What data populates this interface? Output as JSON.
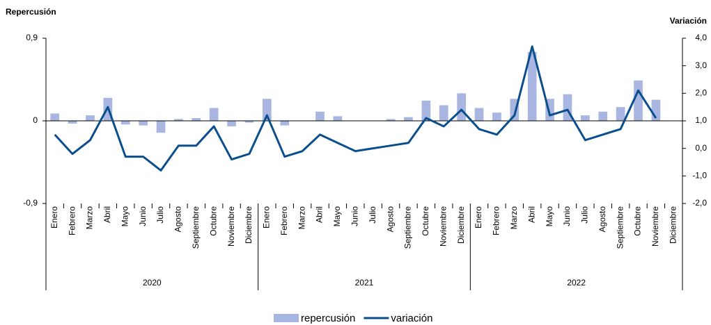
{
  "chart_data": {
    "type": "combo",
    "y_title": "Repercusión",
    "y2_title": "Variación",
    "categories": [
      "Enero",
      "Febrero",
      "Marzo",
      "Abril",
      "Mayo",
      "Junio",
      "Julio",
      "Agosto",
      "Septiembre",
      "Octubre",
      "Noviembre",
      "Diciembre",
      "Enero",
      "Febrero",
      "Marzo",
      "Abril",
      "Mayo",
      "Junio",
      "Julio",
      "Agosto",
      "Septiembre",
      "Octubre",
      "Noviembre",
      "Diciembre",
      "Enero",
      "Febrero",
      "Marzo",
      "Abril",
      "Mayo",
      "Junio",
      "Julio",
      "Agosto",
      "Septiembre",
      "Octubre",
      "Noviembre",
      "Diciembre"
    ],
    "groups": [
      "2020",
      "2021",
      "2022"
    ],
    "series": [
      {
        "name": "repercusión",
        "type": "bar",
        "axis": "y",
        "color": "#a9b6e2",
        "values": [
          0.08,
          -0.03,
          0.06,
          0.25,
          -0.04,
          -0.05,
          -0.13,
          0.02,
          0.03,
          0.14,
          -0.06,
          -0.02,
          0.24,
          -0.05,
          0,
          0.1,
          0.05,
          0,
          0,
          0.02,
          0.04,
          0.22,
          0.17,
          0.3,
          0.14,
          0.09,
          0.24,
          0.75,
          0.24,
          0.29,
          0.06,
          0.1,
          0.15,
          0.44,
          0.23,
          null
        ]
      },
      {
        "name": "variación",
        "type": "line",
        "axis": "y2",
        "color": "#0b4e8d",
        "values": [
          0.5,
          -0.2,
          0.3,
          1.5,
          -0.3,
          -0.3,
          -0.8,
          0.1,
          0.1,
          0.8,
          -0.4,
          -0.2,
          1.2,
          -0.3,
          -0.1,
          0.5,
          0.2,
          -0.1,
          0.0,
          0.1,
          0.2,
          1.1,
          0.8,
          1.4,
          0.7,
          0.5,
          1.2,
          3.7,
          1.2,
          1.4,
          0.3,
          0.5,
          0.7,
          2.1,
          1.1,
          null
        ]
      }
    ],
    "ylim": [
      -0.9,
      0.9
    ],
    "yticks": [
      {
        "value": 0.9,
        "label": "0,9"
      },
      0,
      {
        "value": -0.9,
        "label": "-0,9"
      }
    ],
    "y2lim": [
      -2,
      4
    ],
    "y2ticks": [
      {
        "value": 4,
        "label": "4,0"
      },
      {
        "value": 3,
        "label": "3,0"
      },
      {
        "value": 2,
        "label": "2,0"
      },
      {
        "value": 1,
        "label": "1,0"
      },
      {
        "value": 0,
        "label": "0,0"
      },
      {
        "value": -1,
        "label": "-1,0"
      },
      {
        "value": -2,
        "label": "-2,0"
      }
    ]
  }
}
